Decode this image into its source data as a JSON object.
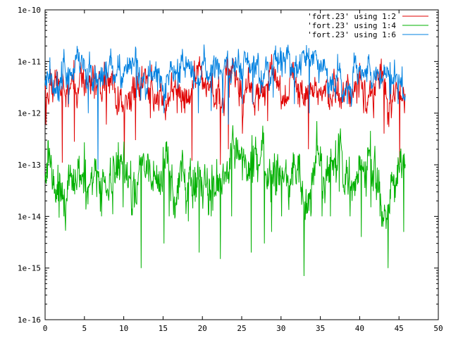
{
  "chart_data": {
    "type": "line",
    "title": "",
    "xlabel": "",
    "ylabel": "",
    "xlim": [
      0,
      50
    ],
    "ylim": [
      1e-16,
      1e-10
    ],
    "yscale": "log",
    "grid": false,
    "legend_position": "top-right",
    "x_ticks": [
      "0",
      "5",
      "10",
      "15",
      "20",
      "25",
      "30",
      "35",
      "40",
      "45",
      "50"
    ],
    "y_ticks": [
      "1e-16",
      "1e-15",
      "1e-14",
      "1e-13",
      "1e-12",
      "1e-11",
      "1e-10"
    ],
    "x_data_range": [
      0,
      45.8
    ],
    "series": [
      {
        "name": "'fort.23' using 1:2",
        "color": "#e00000",
        "base": 3e-12,
        "spread": 0.22,
        "spikes": [
          [
            0.1,
            6e-13
          ],
          [
            0.9,
            4e-12
          ],
          [
            1.5,
            7e-12
          ],
          [
            2.2,
            1.1e-13
          ],
          [
            3.7,
            2.8e-13
          ],
          [
            5.5,
            2e-12
          ],
          [
            7.8,
            6e-13
          ],
          [
            9.7,
            1.3e-12
          ],
          [
            10.1,
            1.1e-13
          ],
          [
            11.5,
            3e-13
          ],
          [
            12.5,
            6e-12
          ],
          [
            13.4,
            8e-13
          ],
          [
            15.5,
            1.5e-12
          ],
          [
            16.8,
            1e-12
          ],
          [
            18.7,
            1.2e-13
          ],
          [
            21.4,
            2.2e-12
          ],
          [
            22.3,
            1e-13
          ],
          [
            23.3,
            2e-13
          ],
          [
            23.4,
            2e-12
          ],
          [
            25.1,
            4e-13
          ],
          [
            26.0,
            2.5e-12
          ],
          [
            27.1,
            1.1e-12
          ],
          [
            28.3,
            7e-13
          ],
          [
            29.0,
            5e-12
          ],
          [
            30.7,
            1.5e-12
          ],
          [
            31.9,
            5e-12
          ],
          [
            33.2,
            1.8e-12
          ],
          [
            33.5,
            2e-13
          ],
          [
            34.3,
            5e-12
          ],
          [
            36.0,
            1.5e-12
          ],
          [
            37.9,
            4e-12
          ],
          [
            38.6,
            1.5e-12
          ],
          [
            39.9,
            2e-12
          ],
          [
            40.5,
            1e-12
          ],
          [
            41.8,
            8e-13
          ],
          [
            43.1,
            4e-13
          ],
          [
            43.3,
            4e-12
          ],
          [
            44.0,
            8e-13
          ],
          [
            45.1,
            1e-13
          ],
          [
            45.7,
            1e-12
          ]
        ]
      },
      {
        "name": "'fort.23' using 1:4",
        "color": "#00b000",
        "base": 5e-14,
        "spread": 0.3,
        "spikes": [
          [
            0.2,
            1.1e-13
          ],
          [
            1.3,
            2e-14
          ],
          [
            2.4,
            1e-14
          ],
          [
            3.2,
            1e-13
          ],
          [
            5.1,
            3e-14
          ],
          [
            7.2,
            1e-14
          ],
          [
            8.6,
            1.1e-14
          ],
          [
            9.9,
            1.5e-14
          ],
          [
            10.9,
            1.2e-13
          ],
          [
            12.2,
            1e-15
          ],
          [
            13.5,
            4e-14
          ],
          [
            15.1,
            3e-15
          ],
          [
            15.8,
            1e-14
          ],
          [
            18.2,
            8e-15
          ],
          [
            19.6,
            2e-15
          ],
          [
            21.1,
            1e-14
          ],
          [
            22.3,
            1.5e-15
          ],
          [
            23.7,
            1e-14
          ],
          [
            25.1,
            5e-14
          ],
          [
            26.2,
            2e-15
          ],
          [
            27.9,
            3e-15
          ],
          [
            28.8,
            5e-15
          ],
          [
            30.1,
            1e-14
          ],
          [
            31.5,
            4e-14
          ],
          [
            32.9,
            7e-16
          ],
          [
            33.8,
            1e-14
          ],
          [
            35.2,
            1e-14
          ],
          [
            36.3,
            1e-14
          ],
          [
            37.4,
            3e-14
          ],
          [
            38.8,
            1e-14
          ],
          [
            40.2,
            4e-15
          ],
          [
            41.4,
            1.5e-14
          ],
          [
            42.6,
            1e-14
          ],
          [
            43.6,
            1e-15
          ],
          [
            44.8,
            1e-13
          ],
          [
            45.6,
            5e-15
          ]
        ]
      },
      {
        "name": "'fort.23' using 1:6",
        "color": "#0080e0",
        "base": 6e-12,
        "spread": 0.2,
        "spikes": [
          [
            0.2,
            3e-12
          ],
          [
            0.6,
            1.2e-11
          ],
          [
            2.1,
            1e-11
          ],
          [
            3.0,
            1.5e-12
          ],
          [
            5.5,
            1e-12
          ],
          [
            6.7,
            8e-14
          ],
          [
            7.8,
            1e-11
          ],
          [
            9.6,
            3e-12
          ],
          [
            10.5,
            1.2e-11
          ],
          [
            11.6,
            2e-12
          ],
          [
            14.1,
            1e-11
          ],
          [
            15.1,
            1e-12
          ],
          [
            16.9,
            3e-12
          ],
          [
            19.5,
            1e-12
          ],
          [
            20.3,
            1e-11
          ],
          [
            21.1,
            1.1e-12
          ],
          [
            22.6,
            1e-12
          ],
          [
            23.3,
            6e-13
          ],
          [
            24.1,
            1e-11
          ],
          [
            25.1,
            1.5e-12
          ],
          [
            26.4,
            1.5e-12
          ],
          [
            29.0,
            2e-12
          ],
          [
            30.8,
            1.1e-11
          ],
          [
            31.7,
            1.5e-12
          ],
          [
            33.6,
            1e-12
          ],
          [
            34.6,
            1e-11
          ],
          [
            36.1,
            2e-12
          ],
          [
            37.2,
            1.4e-11
          ],
          [
            38.4,
            1.5e-12
          ],
          [
            39.4,
            1e-11
          ],
          [
            40.9,
            4e-12
          ],
          [
            42.6,
            3e-12
          ],
          [
            43.8,
            1.8e-12
          ],
          [
            44.9,
            1.5e-12
          ],
          [
            45.4,
            8e-12
          ]
        ]
      }
    ]
  }
}
